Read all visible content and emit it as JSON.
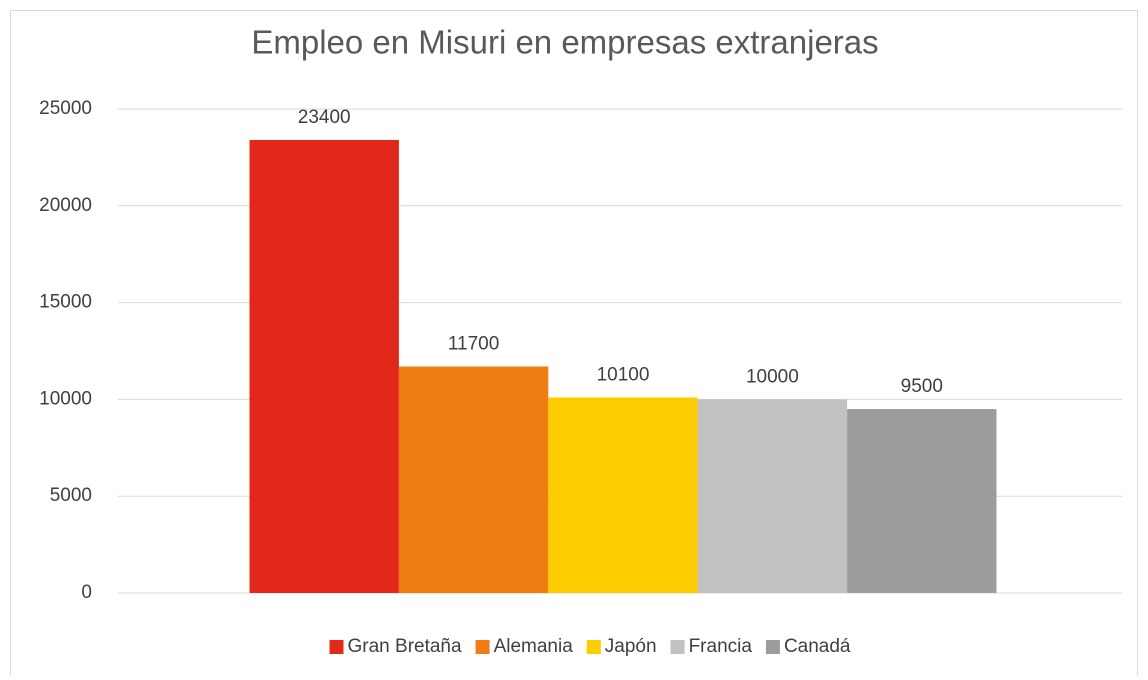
{
  "chart_data": {
    "type": "bar",
    "title": "Empleo en Misuri en empresas extranjeras",
    "categories": [
      null
    ],
    "series": [
      {
        "name": "Gran Bretaña",
        "color": "#e2271b",
        "values": [
          23400
        ]
      },
      {
        "name": "Alemania",
        "color": "#ef7d14",
        "values": [
          11700
        ]
      },
      {
        "name": "Japón",
        "color": "#fdcd01",
        "values": [
          10100
        ]
      },
      {
        "name": "Francia",
        "color": "#c2c1c1",
        "values": [
          10000
        ]
      },
      {
        "name": "Canadá",
        "color": "#9d9c9c",
        "values": [
          9500
        ]
      }
    ],
    "ylim": [
      0,
      25000
    ],
    "yticks": [
      0,
      5000,
      10000,
      15000,
      20000,
      25000
    ],
    "grid": true,
    "legend": "bottom"
  }
}
